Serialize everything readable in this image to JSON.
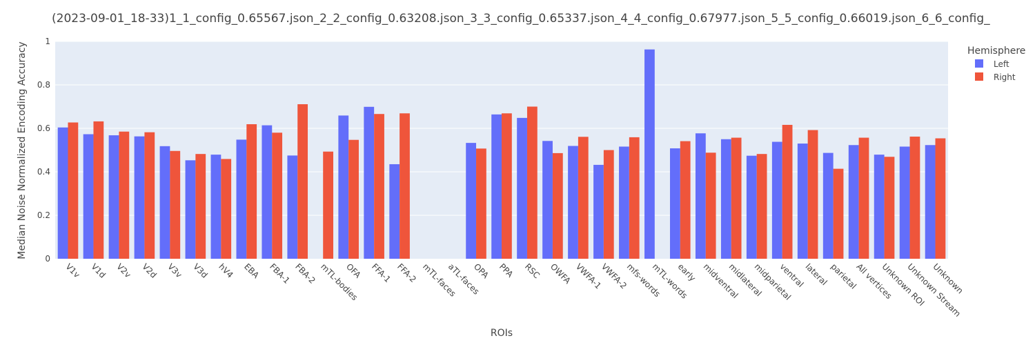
{
  "chart_data": {
    "type": "bar",
    "title": "(2023-09-01_18-33)1_1_config_0.65567.json_2_2_config_0.63208.json_3_3_config_0.65337.json_4_4_config_0.67977.json_5_5_config_0.66019.json_6_6_config_",
    "xlabel": "ROIs",
    "ylabel": "Median Noise Normalized Encoding Accuracy",
    "ylim": [
      0,
      1
    ],
    "yticks": [
      0,
      0.2,
      0.4,
      0.6,
      0.8,
      1
    ],
    "ytick_labels": [
      "0",
      "0.2",
      "0.4",
      "0.6",
      "0.8",
      "1"
    ],
    "grid": true,
    "legend": {
      "title": "Hemisphere",
      "placement": "top-right"
    },
    "categories": [
      "V1v",
      "V1d",
      "V2v",
      "V2d",
      "V3v",
      "V3d",
      "hV4",
      "EBA",
      "FBA-1",
      "FBA-2",
      "mTL-bodies",
      "OFA",
      "FFA-1",
      "FFA-2",
      "mTL-faces",
      "aTL-faces",
      "OPA",
      "PPA",
      "RSC",
      "OWFA",
      "VWFA-1",
      "VWFA-2",
      "mfs-words",
      "mTL-words",
      "early",
      "midventral",
      "midlateral",
      "midparietal",
      "ventral",
      "lateral",
      "parietal",
      "All vertices",
      "Unknown ROI",
      "Unknown Stream",
      "Unknown"
    ],
    "series": [
      {
        "name": "Left",
        "color": "#636efa",
        "values": [
          0.604,
          0.573,
          0.568,
          0.563,
          0.518,
          0.453,
          0.479,
          0.548,
          0.614,
          0.475,
          null,
          0.659,
          0.699,
          0.435,
          null,
          null,
          0.533,
          0.664,
          0.648,
          0.542,
          0.519,
          0.432,
          0.516,
          0.963,
          0.508,
          0.577,
          0.55,
          0.474,
          0.538,
          0.53,
          0.487,
          0.523,
          0.479,
          0.516,
          0.523
        ]
      },
      {
        "name": "Right",
        "color": "#ef553b",
        "values": [
          0.627,
          0.632,
          0.585,
          0.582,
          0.496,
          0.482,
          0.459,
          0.619,
          0.58,
          0.711,
          0.493,
          0.547,
          0.666,
          0.669,
          null,
          null,
          0.507,
          0.669,
          0.7,
          0.486,
          0.561,
          0.5,
          0.559,
          null,
          0.541,
          0.488,
          0.557,
          0.482,
          0.616,
          0.592,
          0.414,
          0.557,
          0.469,
          0.562,
          0.554
        ]
      }
    ]
  }
}
